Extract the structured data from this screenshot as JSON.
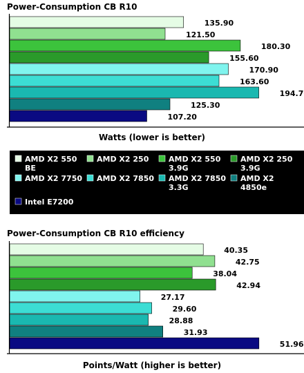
{
  "colors": {
    "axis": "#000000",
    "legend_bg": "#000000",
    "bar_border": "#000000"
  },
  "legend": [
    {
      "label": "AMD X2 550",
      "label2": "BE",
      "color": "#e5fce5"
    },
    {
      "label": "AMD X2 250",
      "label2": "",
      "color": "#90e090"
    },
    {
      "label": "AMD X2 550",
      "label2": "3.9G",
      "color": "#3cc33c"
    },
    {
      "label": "AMD X2 250",
      "label2": "3.9G",
      "color": "#2a9a2a"
    },
    {
      "label": "AMD X2 7750",
      "label2": "",
      "color": "#80f4ee"
    },
    {
      "label": "AMD X2 7850",
      "label2": "",
      "color": "#3cddd4"
    },
    {
      "label": "AMD X2 7850",
      "label2": "3.3G",
      "color": "#1ab8b0"
    },
    {
      "label": "AMD X2",
      "label2": "4850e",
      "color": "#108080"
    },
    {
      "label": "Intel E7200",
      "label2": "",
      "color": "#0a0a82"
    }
  ],
  "chart_data": [
    {
      "type": "bar",
      "orientation": "horizontal",
      "title": "Power-Consumption CB R10",
      "xlabel": "Watts (lower is better)",
      "categories": [
        "AMD X2 550 BE",
        "AMD X2 250",
        "AMD X2 550 3.9G",
        "AMD X2 250 3.9G",
        "AMD X2 7750",
        "AMD X2 7850",
        "AMD X2 7850 3.3G",
        "AMD X2 4850e",
        "Intel E7200"
      ],
      "values": [
        135.9,
        121.5,
        180.3,
        155.6,
        170.9,
        163.6,
        194.7,
        125.3,
        107.2
      ],
      "value_labels": [
        "135.90",
        "121.50",
        "180.30",
        "155.60",
        "170.90",
        "163.60",
        "194.70",
        "125.30",
        "107.20"
      ],
      "xlim": [
        0,
        216
      ],
      "grid": false
    },
    {
      "type": "bar",
      "orientation": "horizontal",
      "title": "Power-Consumption CB R10 efficiency",
      "xlabel": "Points/Watt (higher is better)",
      "categories": [
        "AMD X2 550 BE",
        "AMD X2 250",
        "AMD X2 550 3.9G",
        "AMD X2 250 3.9G",
        "AMD X2 7750",
        "AMD X2 7850",
        "AMD X2 7850 3.3G",
        "AMD X2 4850e",
        "Intel E7200"
      ],
      "values": [
        40.35,
        42.75,
        38.04,
        42.94,
        27.17,
        29.6,
        28.88,
        31.93,
        51.96
      ],
      "value_labels": [
        "40.35",
        "42.75",
        "38.04",
        "42.94",
        "27.17",
        "29.60",
        "28.88",
        "31.93",
        "51.96"
      ],
      "xlim": [
        0,
        57.6
      ],
      "grid": false
    }
  ]
}
